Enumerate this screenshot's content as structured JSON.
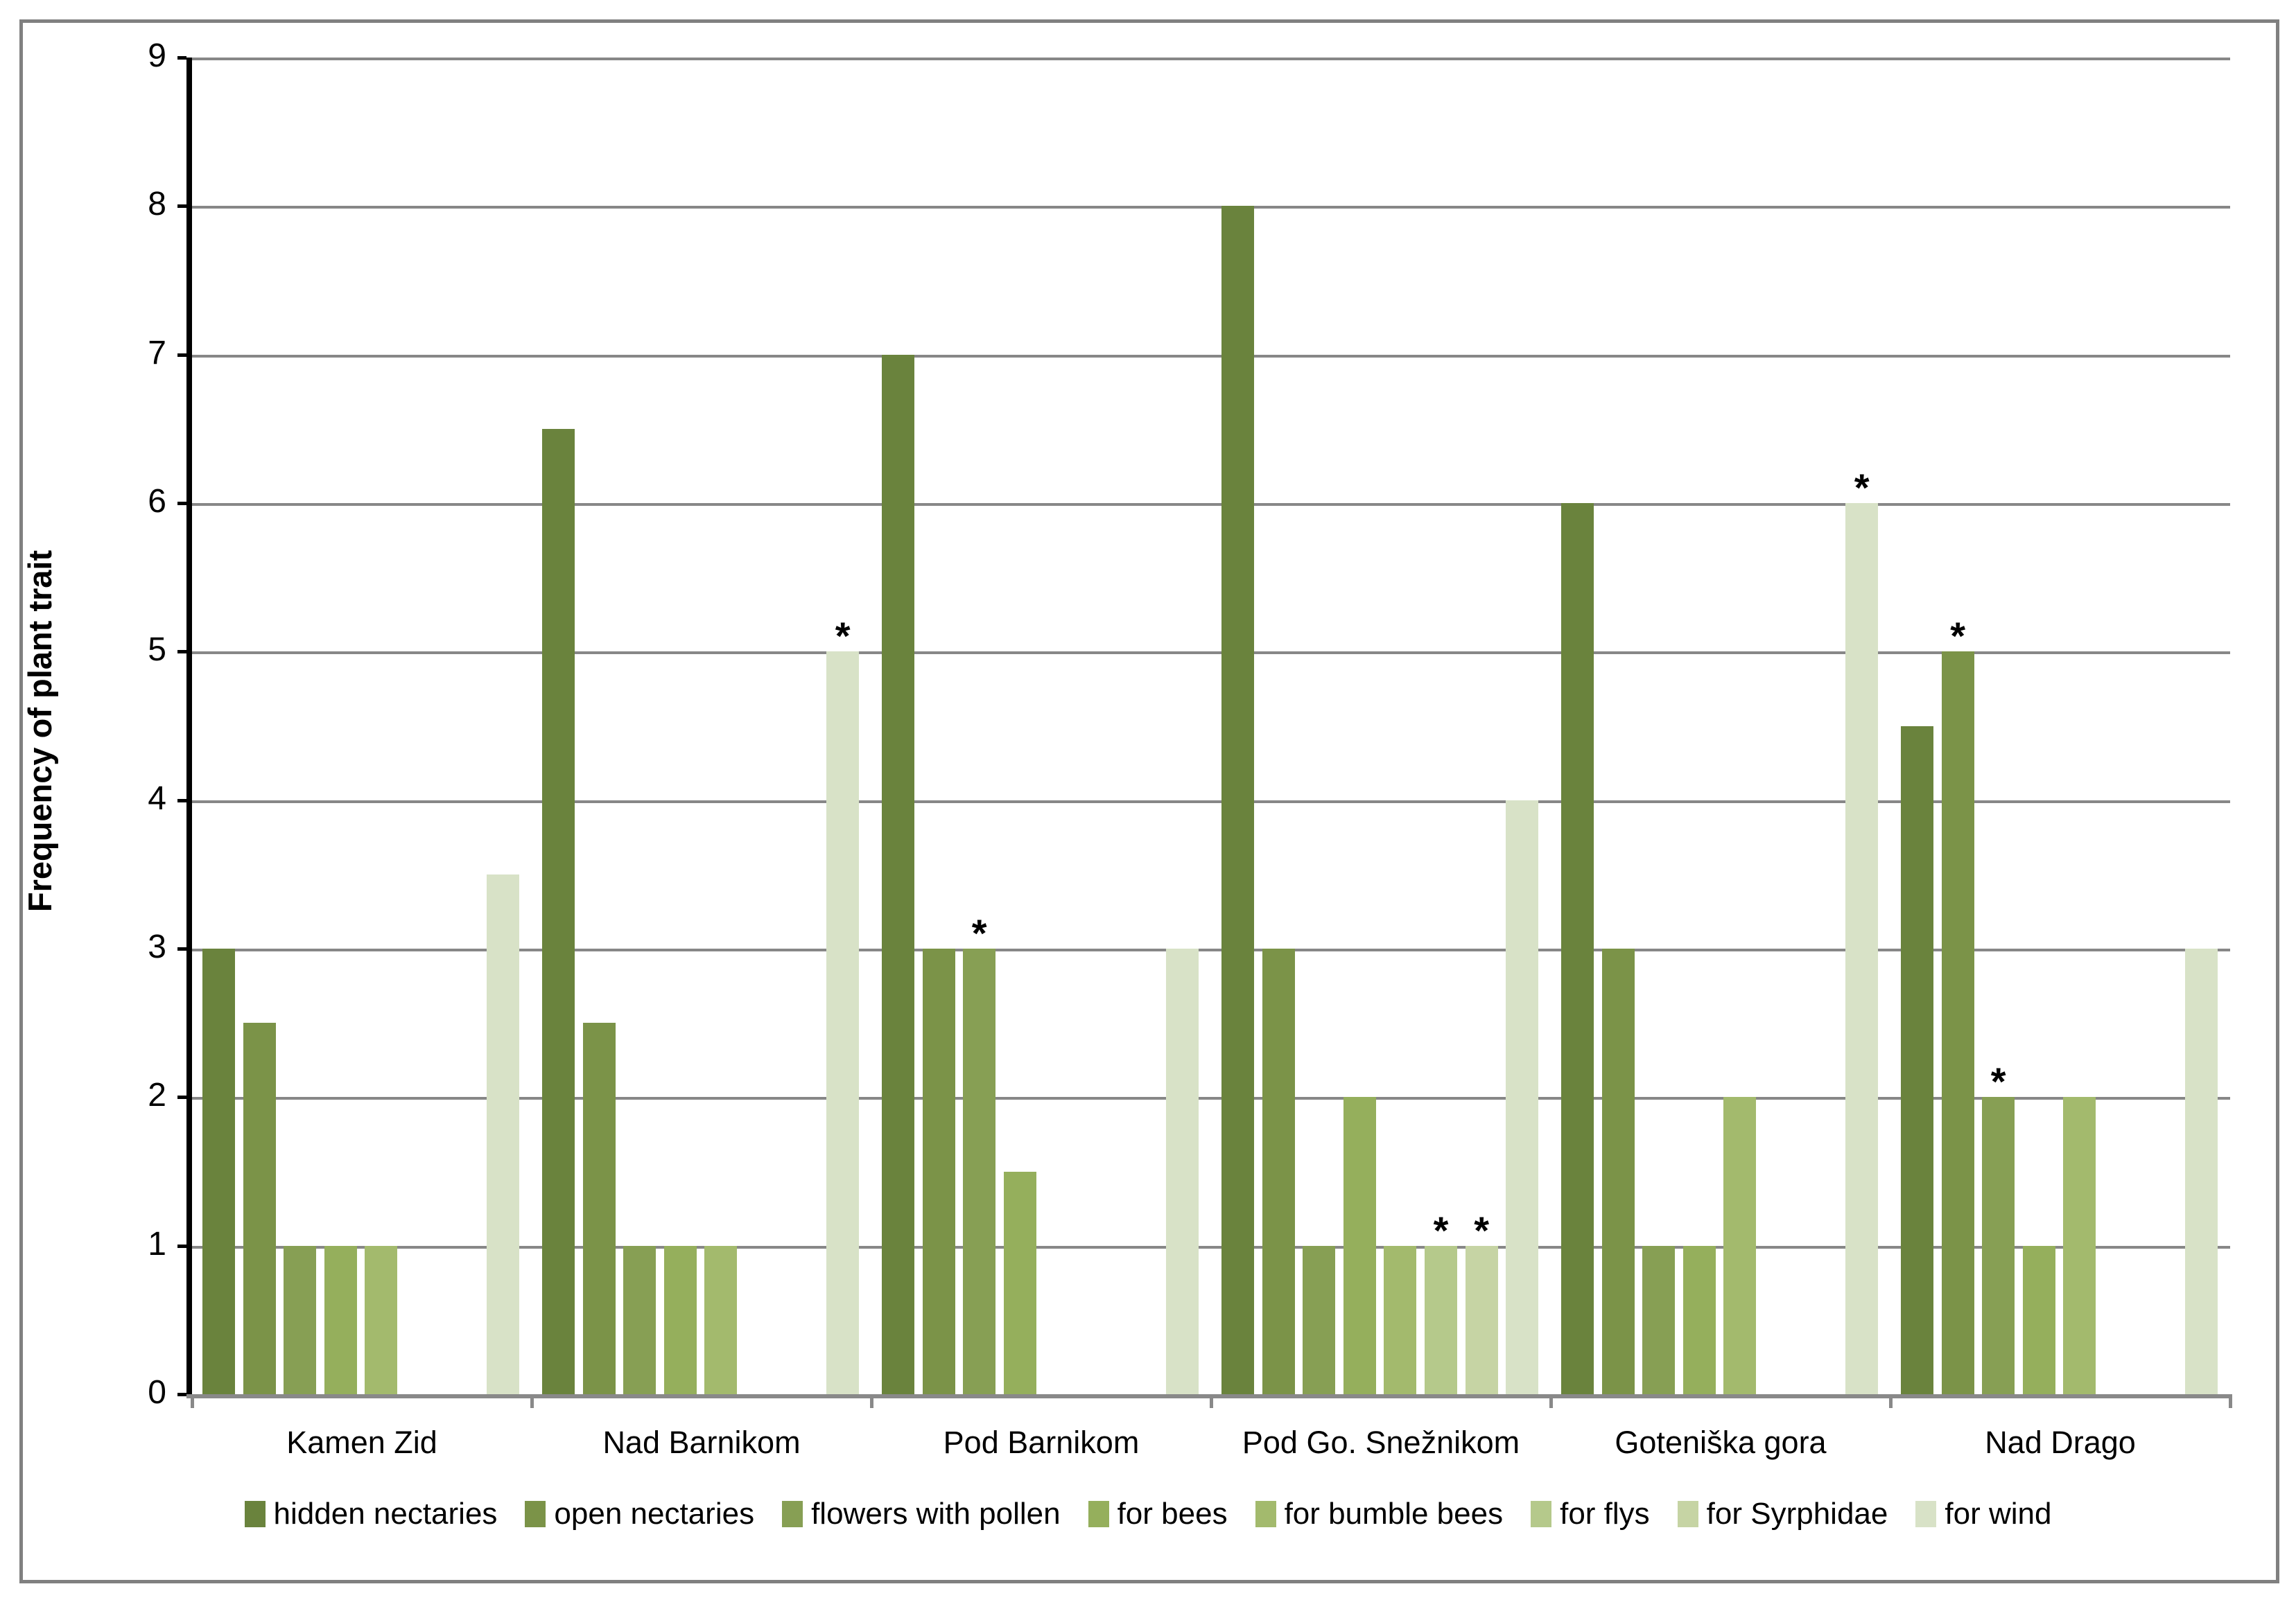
{
  "chart_data": {
    "type": "bar",
    "title": "",
    "xlabel": "",
    "ylabel": "Frequency of plant trait",
    "ylim": [
      0,
      9
    ],
    "ytick_step": 1,
    "ytick_labels": [
      "0",
      "1",
      "2",
      "3",
      "4",
      "5",
      "6",
      "7",
      "8",
      "9"
    ],
    "grid": "horizontal",
    "legend_position": "bottom",
    "annotation_symbol": "*",
    "annotation_meaning": "asterisk marks significant bars",
    "categories": [
      "Kamen Zid",
      "Nad Barnikom",
      "Pod Barnikom",
      "Pod Go. Snežnikom",
      "Goteniška gora",
      "Nad Drago"
    ],
    "series": [
      {
        "name": "hidden nectaries",
        "color": "#6a833d",
        "values": [
          3,
          6.5,
          7,
          8,
          6,
          4.5
        ],
        "asterisks": [
          0,
          0,
          0,
          0,
          0,
          0
        ]
      },
      {
        "name": "open nectaries",
        "color": "#7b9348",
        "values": [
          2.5,
          2.5,
          3,
          3,
          3,
          5
        ],
        "asterisks": [
          0,
          0,
          0,
          0,
          0,
          1
        ]
      },
      {
        "name": "flowers with pollen",
        "color": "#879f54",
        "values": [
          1,
          1,
          3,
          1,
          1,
          2
        ],
        "asterisks": [
          0,
          0,
          1,
          0,
          0,
          1
        ]
      },
      {
        "name": "for bees",
        "color": "#95af5c",
        "values": [
          1,
          1,
          1.5,
          2,
          1,
          1
        ],
        "asterisks": [
          0,
          0,
          0,
          0,
          0,
          0
        ]
      },
      {
        "name": "for bumble bees",
        "color": "#a3ba6d",
        "values": [
          1,
          1,
          0,
          1,
          2,
          2
        ],
        "asterisks": [
          0,
          0,
          0,
          0,
          0,
          0
        ]
      },
      {
        "name": "for flys",
        "color": "#b5c98b",
        "values": [
          0,
          0,
          0,
          1,
          0,
          0
        ],
        "asterisks": [
          0,
          0,
          0,
          1,
          0,
          0
        ]
      },
      {
        "name": "for Syrphidae",
        "color": "#c6d4a4",
        "values": [
          0,
          0,
          0,
          1,
          0,
          0
        ],
        "asterisks": [
          0,
          0,
          0,
          1,
          0,
          0
        ]
      },
      {
        "name": "for wind",
        "color": "#d8e2c7",
        "values": [
          3.5,
          5,
          3,
          4,
          6,
          3
        ],
        "asterisks": [
          0,
          1,
          0,
          0,
          1,
          0
        ]
      }
    ]
  },
  "colors": {
    "background": "#ffffff",
    "outer_border": "#808080",
    "gridline": "#878787",
    "y_axis": "#000000",
    "x_axis": "#898989",
    "text": "#000000"
  }
}
